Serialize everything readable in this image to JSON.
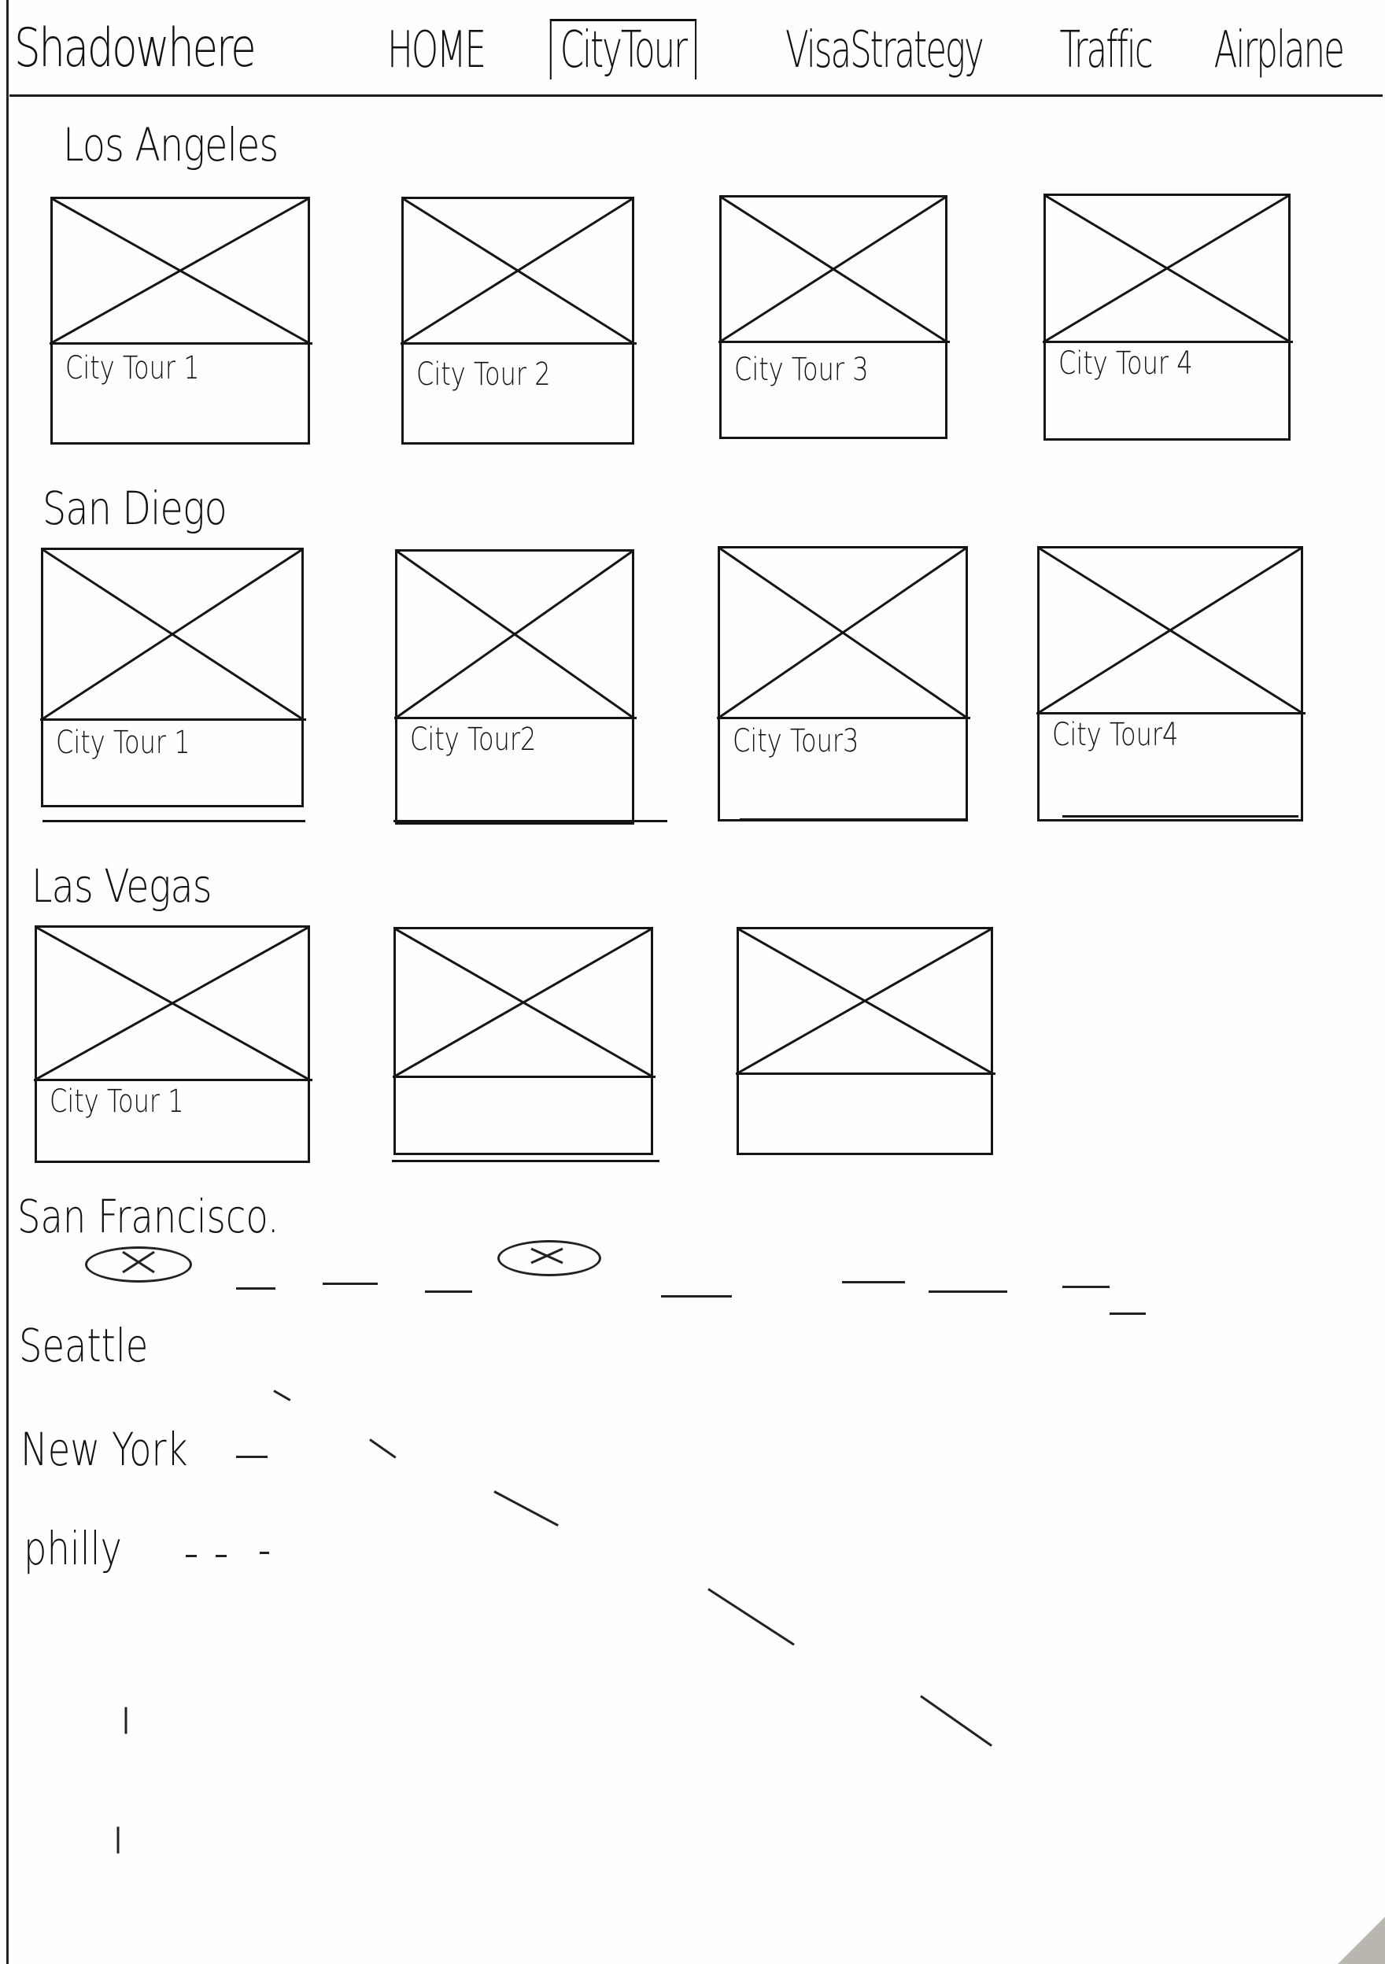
{
  "header": {
    "logo": "Shadowhere",
    "nav": [
      {
        "label": "HOME",
        "active": false
      },
      {
        "label": "CityTour",
        "active": true
      },
      {
        "label": "VisaStrategy",
        "active": false
      },
      {
        "label": "Traffic",
        "active": false
      },
      {
        "label": "Airplane",
        "active": false
      }
    ]
  },
  "sections": [
    {
      "city": "Los Angeles",
      "cards": [
        {
          "label": "City Tour 1"
        },
        {
          "label": "City Tour 2"
        },
        {
          "label": "City Tour 3"
        },
        {
          "label": "City Tour 4"
        }
      ]
    },
    {
      "city": "San Diego",
      "cards": [
        {
          "label": "City Tour 1"
        },
        {
          "label": "City Tour2"
        },
        {
          "label": "City Tour3"
        },
        {
          "label": "City Tour4"
        }
      ]
    },
    {
      "city": "Las Vegas",
      "cards": [
        {
          "label": "City Tour 1"
        },
        {
          "label": ""
        },
        {
          "label": ""
        }
      ]
    }
  ],
  "collapsed_cities": [
    {
      "city": "San Francisco."
    },
    {
      "city": "Seattle"
    },
    {
      "city": "New York"
    },
    {
      "city": "philly"
    }
  ]
}
